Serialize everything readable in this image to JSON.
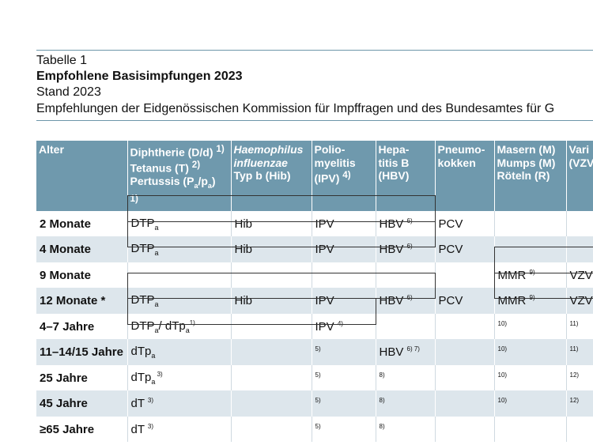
{
  "header": {
    "label": "Tabelle 1",
    "title": "Empfohlene Basisimpfungen 2023",
    "stand": "Stand 2023",
    "subtitle": "Empfehlungen der Eidgenössischen Kommission für Impffragen und des Bundesamtes für G"
  },
  "table": {
    "columns": [
      [
        [
          {
            "text": "Alter"
          }
        ]
      ],
      [
        [
          {
            "text": "Diphtherie (D/d) "
          },
          {
            "sup": "1)"
          }
        ],
        [
          {
            "text": "Tetanus (T) "
          },
          {
            "sup": "2)"
          }
        ],
        [
          {
            "text": "Pertussis (P"
          },
          {
            "sub": "a"
          },
          {
            "text": "/p"
          },
          {
            "sub": "a"
          },
          {
            "text": ")"
          }
        ],
        [
          {
            "sup": "1)"
          }
        ]
      ],
      [
        [
          {
            "em": "Haemophilus"
          }
        ],
        [
          {
            "em": "influenzae"
          }
        ],
        [
          {
            "text": "Typ b (Hib)"
          }
        ]
      ],
      [
        [
          {
            "text": "Polio-"
          }
        ],
        [
          {
            "text": "myelitis"
          }
        ],
        [
          {
            "text": "(IPV) "
          },
          {
            "sup": "4)"
          }
        ]
      ],
      [
        [
          {
            "text": "Hepa-"
          }
        ],
        [
          {
            "text": "titis B"
          }
        ],
        [
          {
            "text": "(HBV)"
          }
        ]
      ],
      [
        [
          {
            "text": "Pneumo-"
          }
        ],
        [
          {
            "text": "kokken"
          }
        ]
      ],
      [
        [
          {
            "text": "Masern (M)"
          }
        ],
        [
          {
            "text": "Mumps (M)"
          }
        ],
        [
          {
            "text": "Röteln (R)"
          }
        ]
      ],
      [
        [
          {
            "text": "Vari"
          }
        ],
        [
          {
            "text": "(VZV"
          }
        ]
      ]
    ],
    "rows": [
      {
        "age": "2 Monate",
        "cells": [
          [
            {
              "text": "DTP"
            },
            {
              "sub": "a"
            }
          ],
          [
            {
              "text": "Hib"
            }
          ],
          [
            {
              "text": "IPV"
            }
          ],
          [
            {
              "text": "HBV "
            },
            {
              "sup": "6)"
            }
          ],
          [
            {
              "text": "PCV"
            }
          ],
          [],
          []
        ]
      },
      {
        "age": "4 Monate",
        "cells": [
          [
            {
              "text": "DTP"
            },
            {
              "sub": "a"
            }
          ],
          [
            {
              "text": "Hib"
            }
          ],
          [
            {
              "text": "IPV"
            }
          ],
          [
            {
              "text": "HBV "
            },
            {
              "sup": "6)"
            }
          ],
          [
            {
              "text": "PCV"
            }
          ],
          [],
          []
        ]
      },
      {
        "age": "9 Monate",
        "cells": [
          [],
          [],
          [],
          [],
          [],
          [
            {
              "text": "MMR "
            },
            {
              "sup": "9)"
            }
          ],
          [
            {
              "text": "VZV"
            }
          ]
        ]
      },
      {
        "age": "12 Monate *",
        "cells": [
          [
            {
              "text": "DTP"
            },
            {
              "sub": "a"
            }
          ],
          [
            {
              "text": "Hib"
            }
          ],
          [
            {
              "text": "IPV"
            }
          ],
          [
            {
              "text": "HBV "
            },
            {
              "sup": "6)"
            }
          ],
          [
            {
              "text": "PCV"
            }
          ],
          [
            {
              "text": "MMR "
            },
            {
              "sup": "9)"
            }
          ],
          [
            {
              "text": "VZV"
            }
          ]
        ]
      },
      {
        "age": "4–7 Jahre",
        "cells": [
          [
            {
              "text": "DTP"
            },
            {
              "sub": "a"
            },
            {
              "text": "/ dTp"
            },
            {
              "sub": "a"
            },
            {
              "sup": "1)"
            }
          ],
          [],
          [
            {
              "text": "IPV "
            },
            {
              "sup": "4)"
            }
          ],
          [],
          [],
          [
            {
              "sup": "10)"
            }
          ],
          [
            {
              "sup": "11)"
            }
          ]
        ]
      },
      {
        "age": "11–14/15 Jahre",
        "cells": [
          [
            {
              "text": "dTp"
            },
            {
              "sub": "a"
            }
          ],
          [],
          [
            {
              "sup": "5)"
            }
          ],
          [
            {
              "text": "HBV "
            },
            {
              "sup": "6) 7)"
            }
          ],
          [],
          [
            {
              "sup": "10)"
            }
          ],
          [
            {
              "sup": "11)"
            }
          ]
        ]
      },
      {
        "age": "25 Jahre",
        "cells": [
          [
            {
              "text": "dTp"
            },
            {
              "sub": "a"
            },
            {
              "sup": " 3)"
            }
          ],
          [],
          [
            {
              "sup": "5)"
            }
          ],
          [
            {
              "sup": "8)"
            }
          ],
          [],
          [
            {
              "sup": "10)"
            }
          ],
          [
            {
              "sup": "12)"
            }
          ]
        ]
      },
      {
        "age": "45 Jahre",
        "cells": [
          [
            {
              "text": "dT "
            },
            {
              "sup": "3)"
            }
          ],
          [],
          [
            {
              "sup": "5)"
            }
          ],
          [
            {
              "sup": "8)"
            }
          ],
          [],
          [
            {
              "sup": "10)"
            }
          ],
          [
            {
              "sup": "12)"
            }
          ]
        ]
      },
      {
        "age": "≥65 Jahre",
        "cells": [
          [
            {
              "text": "dT "
            },
            {
              "sup": "3)"
            }
          ],
          [],
          [
            {
              "sup": "5)"
            }
          ],
          [
            {
              "sup": "8)"
            }
          ],
          [],
          [],
          []
        ]
      }
    ]
  }
}
